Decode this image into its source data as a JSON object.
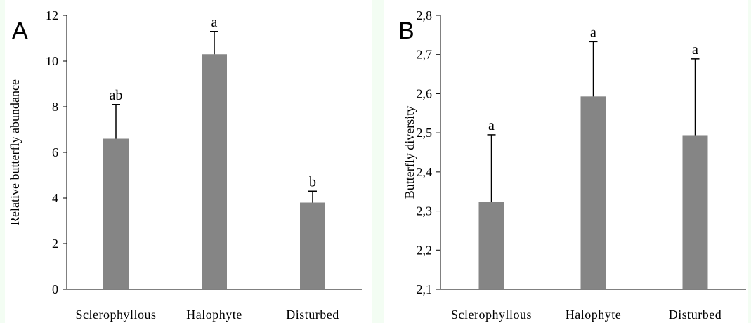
{
  "chart_data": [
    {
      "panel": "A",
      "type": "bar",
      "ylabel": "Relative butterfly abundance",
      "xlabel": "",
      "ylim": [
        0,
        12
      ],
      "yticks": [
        "0",
        "2",
        "4",
        "6",
        "8",
        "10",
        "12"
      ],
      "categories": [
        "Sclerophyllous",
        "Halophyte",
        "Disturbed"
      ],
      "values": [
        6.6,
        10.3,
        3.8
      ],
      "errors": [
        1.5,
        1.0,
        0.5
      ],
      "significance": [
        "ab",
        "a",
        "b"
      ],
      "bar_color": "#858585",
      "grid": false
    },
    {
      "panel": "B",
      "type": "bar",
      "ylabel": "Butterfly diversity",
      "xlabel": "",
      "ylim": [
        2.1,
        2.8
      ],
      "yticks": [
        "2,1",
        "2,2",
        "2,3",
        "2,4",
        "2,5",
        "2,6",
        "2,7",
        "2,8"
      ],
      "categories": [
        "Sclerophyllous",
        "Halophyte",
        "Disturbed"
      ],
      "values": [
        2.323,
        2.593,
        2.494
      ],
      "errors": [
        0.172,
        0.14,
        0.195
      ],
      "significance": [
        "a",
        "a",
        "a"
      ],
      "bar_color": "#858585",
      "grid": false
    }
  ],
  "colors": {
    "background": "#f3fdf3",
    "panel": "#ffffff",
    "bars": "#858585"
  }
}
